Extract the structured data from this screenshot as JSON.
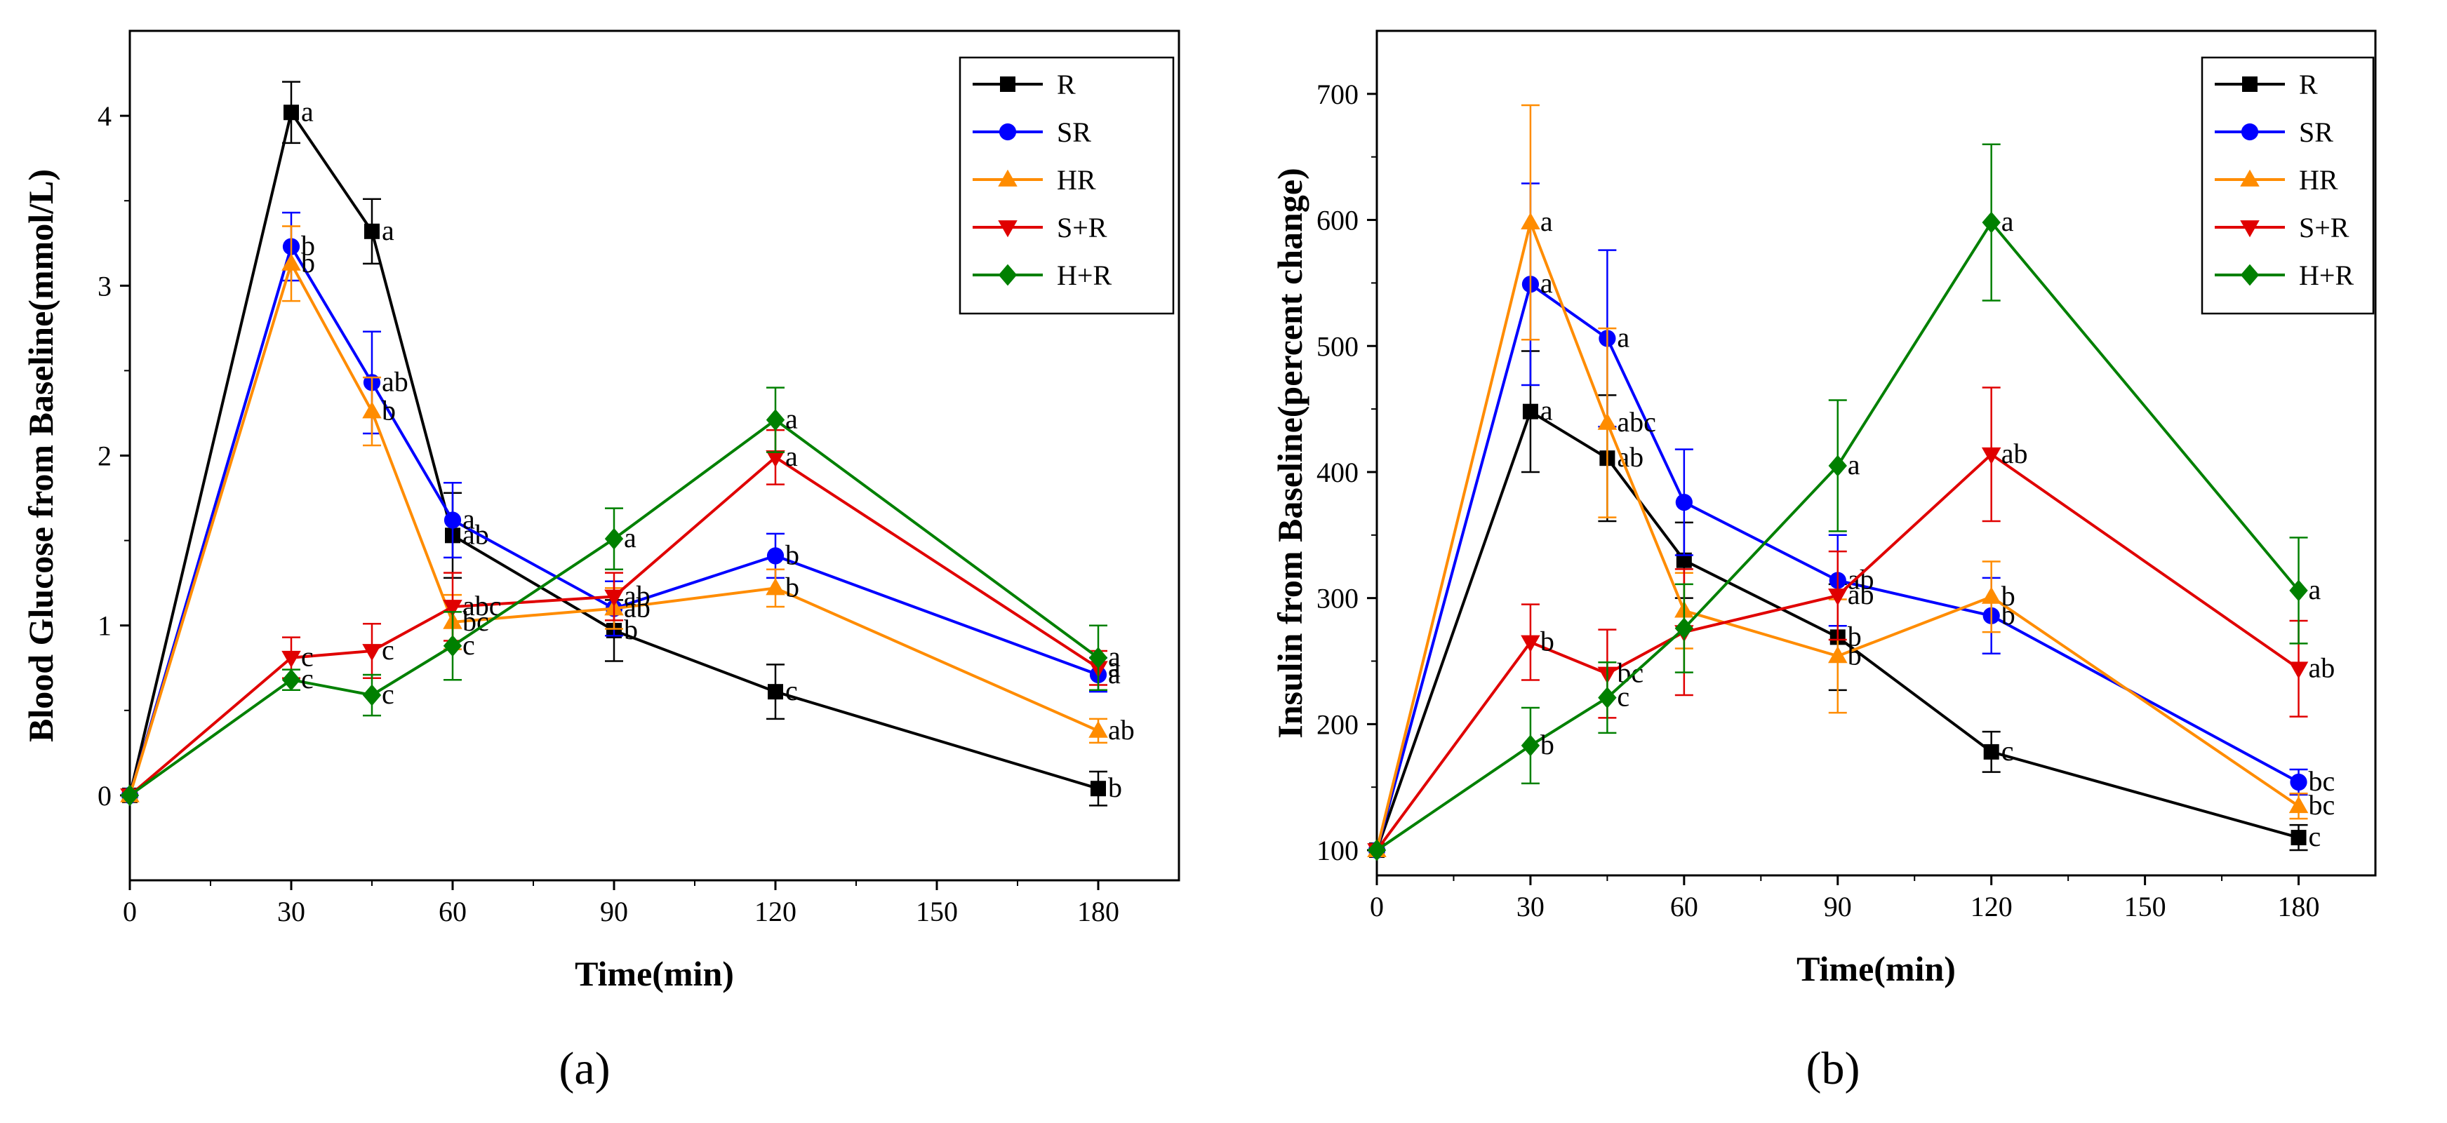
{
  "chart_data": [
    {
      "panel": "a",
      "panel_label": "(a)",
      "type": "line",
      "title": "",
      "xlabel": "Time(min)",
      "ylabel": "Blood Glucose from Baseline(mmol/L)",
      "xlim": [
        0,
        195
      ],
      "ylim": [
        -0.5,
        4.5
      ],
      "x_ticks": [
        0,
        30,
        60,
        90,
        120,
        150,
        180
      ],
      "y_ticks": [
        0,
        1,
        2,
        3,
        4
      ],
      "x": [
        0,
        30,
        45,
        60,
        90,
        120,
        180
      ],
      "legend_position": "top-right",
      "series": [
        {
          "name": "R",
          "color": "#000000",
          "marker": "square",
          "values": [
            0,
            4.02,
            3.32,
            1.53,
            0.97,
            0.61,
            0.04
          ],
          "errors": [
            0,
            0.18,
            0.19,
            0.25,
            0.18,
            0.16,
            0.1
          ],
          "letters": [
            "",
            "a",
            "a",
            "ab",
            "b",
            "c",
            "b"
          ]
        },
        {
          "name": "SR",
          "color": "#0000ff",
          "marker": "circle",
          "values": [
            0,
            3.23,
            2.43,
            1.62,
            1.1,
            1.41,
            0.71
          ],
          "errors": [
            0,
            0.2,
            0.3,
            0.22,
            0.16,
            0.13,
            0.1
          ],
          "letters": [
            "",
            "b",
            "ab",
            "a",
            "ab",
            "b",
            "a"
          ]
        },
        {
          "name": "HR",
          "color": "#ff8c00",
          "marker": "triangle-up",
          "values": [
            0,
            3.13,
            2.26,
            1.02,
            1.1,
            1.22,
            0.38
          ],
          "errors": [
            0,
            0.22,
            0.2,
            0.16,
            0.12,
            0.11,
            0.07
          ],
          "letters": [
            "",
            "b",
            "b",
            "bc",
            "ab",
            "b",
            "ab"
          ]
        },
        {
          "name": "S+R",
          "color": "#e00000",
          "marker": "triangle-down",
          "values": [
            0,
            0.81,
            0.85,
            1.11,
            1.17,
            1.99,
            0.75
          ],
          "errors": [
            0,
            0.12,
            0.16,
            0.2,
            0.14,
            0.16,
            0.1
          ],
          "letters": [
            "",
            "c",
            "c",
            "abc",
            "ab",
            "a",
            "a"
          ]
        },
        {
          "name": "H+R",
          "color": "#008000",
          "marker": "diamond",
          "values": [
            0,
            0.68,
            0.59,
            0.88,
            1.51,
            2.21,
            0.81
          ],
          "errors": [
            0,
            0.06,
            0.12,
            0.2,
            0.18,
            0.19,
            0.19
          ],
          "letters": [
            "",
            "c",
            "c",
            "c",
            "a",
            "a",
            "a"
          ]
        }
      ]
    },
    {
      "panel": "b",
      "panel_label": "(b)",
      "type": "line",
      "title": "",
      "xlabel": "Time(min)",
      "ylabel": "Insulin from Baseline(percent change)",
      "xlim": [
        0,
        195
      ],
      "ylim": [
        80,
        750
      ],
      "x_ticks": [
        0,
        30,
        60,
        90,
        120,
        150,
        180
      ],
      "y_ticks": [
        100,
        200,
        300,
        400,
        500,
        600,
        700
      ],
      "x": [
        0,
        30,
        45,
        60,
        90,
        120,
        180
      ],
      "legend_position": "top-right",
      "series": [
        {
          "name": "R",
          "color": "#000000",
          "marker": "square",
          "values": [
            100,
            448,
            411,
            330,
            269,
            178,
            110
          ],
          "errors": [
            0,
            48,
            50,
            30,
            42,
            16,
            10
          ],
          "letters": [
            "",
            "a",
            "ab",
            "",
            "b",
            "c",
            "c"
          ]
        },
        {
          "name": "SR",
          "color": "#0000ff",
          "marker": "circle",
          "values": [
            100,
            549,
            506,
            376,
            314,
            286,
            154
          ],
          "errors": [
            0,
            80,
            70,
            42,
            36,
            30,
            10
          ],
          "letters": [
            "",
            "a",
            "a",
            "",
            "ab",
            "b",
            "bc"
          ]
        },
        {
          "name": "HR",
          "color": "#ff8c00",
          "marker": "triangle-up",
          "values": [
            100,
            598,
            439,
            290,
            254,
            301,
            135
          ],
          "errors": [
            0,
            93,
            75,
            30,
            45,
            28,
            10
          ],
          "letters": [
            "",
            "a",
            "abc",
            "",
            "b",
            "b",
            "bc"
          ]
        },
        {
          "name": "S+R",
          "color": "#e00000",
          "marker": "triangle-down",
          "values": [
            100,
            265,
            240,
            273,
            302,
            414,
            244
          ],
          "errors": [
            0,
            30,
            35,
            50,
            35,
            53,
            38
          ],
          "letters": [
            "",
            "b",
            "bc",
            "",
            "ab",
            "ab",
            "ab"
          ]
        },
        {
          "name": "H+R",
          "color": "#008000",
          "marker": "diamond",
          "values": [
            100,
            183,
            221,
            276,
            405,
            598,
            306
          ],
          "errors": [
            0,
            30,
            28,
            35,
            52,
            62,
            42
          ],
          "letters": [
            "",
            "b",
            "c",
            "",
            "a",
            "a",
            "a"
          ]
        }
      ]
    }
  ]
}
